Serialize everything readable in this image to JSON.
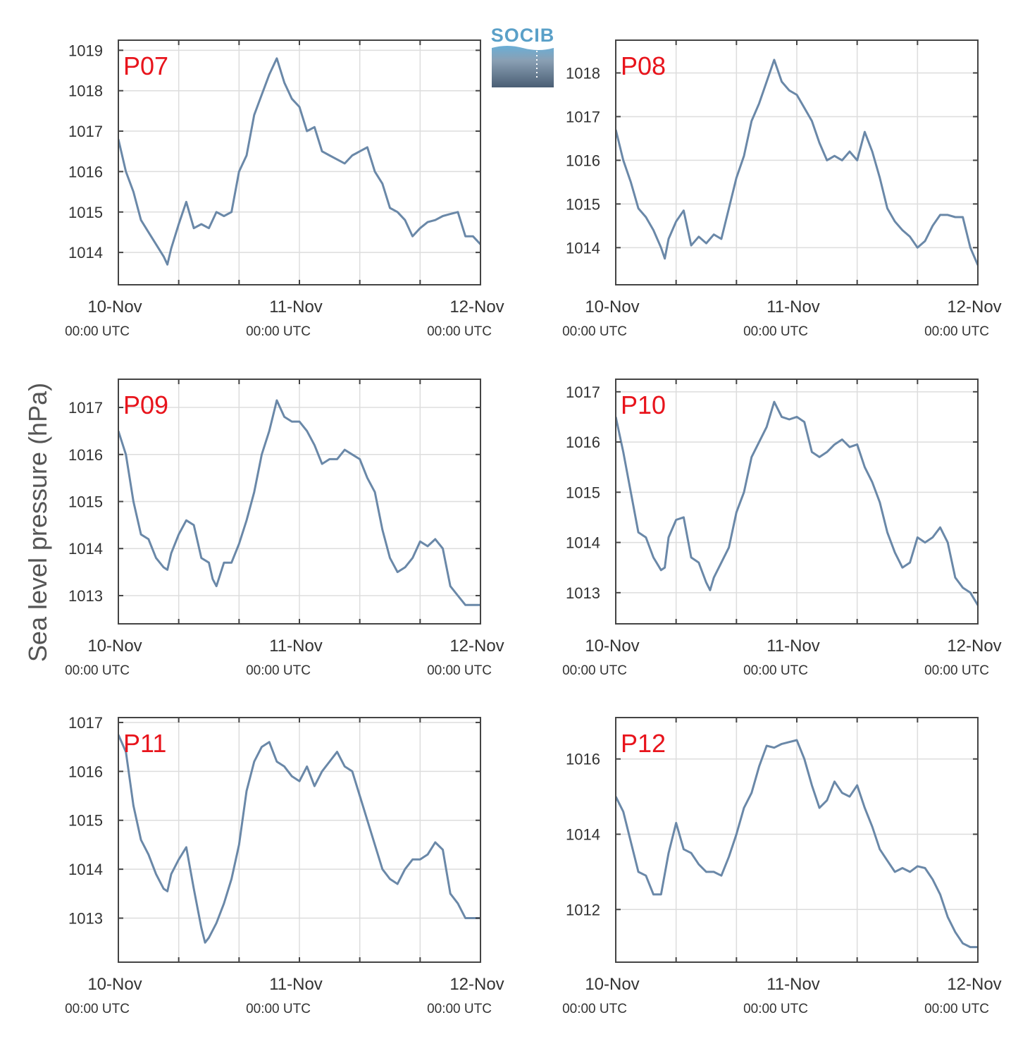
{
  "figure": {
    "ylabel": "Sea level pressure (hPa)",
    "logo_text": "SOCIB",
    "line_color": "#6a88a8",
    "label_color": "#e8141c",
    "grid_color": "#dddddd",
    "frame_color": "#444444"
  },
  "chart_data": [
    {
      "type": "line",
      "name": "P07",
      "xlabel": "",
      "ylabel": "Sea level pressure (hPa)",
      "x_ticks": [
        {
          "hour": 0,
          "date": "10-Nov",
          "time": "00:00 UTC"
        },
        {
          "hour": 24,
          "date": "11-Nov",
          "time": "00:00 UTC"
        },
        {
          "hour": 48,
          "date": "12-Nov",
          "time": "00:00 UTC"
        }
      ],
      "xlim_hours": [
        0,
        48
      ],
      "ylim": [
        1013.2,
        1019.25
      ],
      "yticks": [
        1014,
        1015,
        1016,
        1017,
        1018,
        1019
      ],
      "grid": true,
      "series": [
        {
          "x_hours": [
            0,
            1,
            2,
            3,
            4,
            5,
            6,
            6.5,
            7,
            8,
            9,
            10,
            11,
            12,
            13,
            14,
            15,
            16,
            17,
            18,
            19,
            20,
            21,
            22,
            23,
            24,
            25,
            26,
            27,
            28,
            29,
            30,
            31,
            32,
            33,
            34,
            35,
            36,
            37,
            38,
            39,
            40,
            41,
            42,
            43,
            44,
            45,
            46,
            47,
            48
          ],
          "values": [
            1016.8,
            1016.0,
            1015.5,
            1014.8,
            1014.5,
            1014.2,
            1013.9,
            1013.7,
            1014.1,
            1014.7,
            1015.25,
            1014.6,
            1014.7,
            1014.6,
            1015.0,
            1014.9,
            1015.0,
            1016.0,
            1016.4,
            1017.4,
            1017.9,
            1018.4,
            1018.8,
            1018.2,
            1017.8,
            1017.6,
            1017.0,
            1017.1,
            1016.5,
            1016.4,
            1016.3,
            1016.2,
            1016.4,
            1016.5,
            1016.6,
            1016.0,
            1015.7,
            1015.1,
            1015.0,
            1014.8,
            1014.4,
            1014.6,
            1014.75,
            1014.8,
            1014.9,
            1014.95,
            1015.0,
            1014.4,
            1014.4,
            1014.2
          ]
        }
      ]
    },
    {
      "type": "line",
      "name": "P08",
      "xlabel": "",
      "ylabel": "Sea level pressure (hPa)",
      "x_ticks": [
        {
          "hour": 0,
          "date": "10-Nov",
          "time": "00:00 UTC"
        },
        {
          "hour": 24,
          "date": "11-Nov",
          "time": "00:00 UTC"
        },
        {
          "hour": 48,
          "date": "12-Nov",
          "time": "00:00 UTC"
        }
      ],
      "xlim_hours": [
        0,
        48
      ],
      "ylim": [
        1013.15,
        1018.75
      ],
      "yticks": [
        1014,
        1015,
        1016,
        1017,
        1018
      ],
      "grid": true,
      "series": [
        {
          "x_hours": [
            0,
            1,
            2,
            3,
            4,
            5,
            6,
            6.5,
            7,
            8,
            9,
            10,
            11,
            12,
            13,
            14,
            15,
            16,
            17,
            18,
            19,
            20,
            21,
            22,
            23,
            24,
            25,
            26,
            27,
            28,
            29,
            30,
            31,
            32,
            33,
            34,
            35,
            36,
            37,
            38,
            39,
            40,
            41,
            42,
            43,
            44,
            45,
            46,
            47,
            48
          ],
          "values": [
            1016.7,
            1016.0,
            1015.5,
            1014.9,
            1014.7,
            1014.4,
            1014.0,
            1013.75,
            1014.2,
            1014.6,
            1014.85,
            1014.05,
            1014.25,
            1014.1,
            1014.3,
            1014.2,
            1014.9,
            1015.6,
            1016.1,
            1016.9,
            1017.3,
            1017.8,
            1018.3,
            1017.8,
            1017.6,
            1017.5,
            1017.2,
            1016.9,
            1016.4,
            1016.0,
            1016.1,
            1016.0,
            1016.2,
            1016.0,
            1016.65,
            1016.2,
            1015.6,
            1014.9,
            1014.6,
            1014.4,
            1014.25,
            1014.0,
            1014.15,
            1014.5,
            1014.75,
            1014.75,
            1014.7,
            1014.7,
            1014.0,
            1013.6
          ]
        }
      ]
    },
    {
      "type": "line",
      "name": "P09",
      "xlabel": "",
      "ylabel": "Sea level pressure (hPa)",
      "x_ticks": [
        {
          "hour": 0,
          "date": "10-Nov",
          "time": "00:00 UTC"
        },
        {
          "hour": 24,
          "date": "11-Nov",
          "time": "00:00 UTC"
        },
        {
          "hour": 48,
          "date": "12-Nov",
          "time": "00:00 UTC"
        }
      ],
      "xlim_hours": [
        0,
        48
      ],
      "ylim": [
        1012.4,
        1017.6
      ],
      "yticks": [
        1013,
        1014,
        1015,
        1016,
        1017
      ],
      "grid": true,
      "series": [
        {
          "x_hours": [
            0,
            1,
            2,
            3,
            4,
            5,
            6,
            6.5,
            7,
            8,
            9,
            10,
            11,
            12,
            12.5,
            13,
            14,
            15,
            16,
            17,
            18,
            19,
            20,
            21,
            22,
            23,
            24,
            25,
            26,
            27,
            28,
            29,
            30,
            31,
            32,
            33,
            34,
            35,
            36,
            37,
            38,
            39,
            40,
            41,
            42,
            43,
            44,
            45,
            46,
            47,
            48
          ],
          "values": [
            1016.5,
            1016.0,
            1015.0,
            1014.3,
            1014.2,
            1013.8,
            1013.6,
            1013.55,
            1013.9,
            1014.3,
            1014.6,
            1014.5,
            1013.8,
            1013.7,
            1013.35,
            1013.2,
            1013.7,
            1013.7,
            1014.1,
            1014.6,
            1015.2,
            1016.0,
            1016.5,
            1017.15,
            1016.8,
            1016.7,
            1016.7,
            1016.5,
            1016.2,
            1015.8,
            1015.9,
            1015.9,
            1016.1,
            1016.0,
            1015.9,
            1015.5,
            1015.2,
            1014.4,
            1013.8,
            1013.5,
            1013.6,
            1013.8,
            1014.15,
            1014.05,
            1014.2,
            1014.0,
            1013.2,
            1013.0,
            1012.8,
            1012.8,
            1012.8
          ]
        }
      ]
    },
    {
      "type": "line",
      "name": "P10",
      "xlabel": "",
      "ylabel": "Sea level pressure (hPa)",
      "x_ticks": [
        {
          "hour": 0,
          "date": "10-Nov",
          "time": "00:00 UTC"
        },
        {
          "hour": 24,
          "date": "11-Nov",
          "time": "00:00 UTC"
        },
        {
          "hour": 48,
          "date": "12-Nov",
          "time": "00:00 UTC"
        }
      ],
      "xlim_hours": [
        0,
        48
      ],
      "ylim": [
        1012.38,
        1017.25
      ],
      "yticks": [
        1013,
        1014,
        1015,
        1016,
        1017
      ],
      "grid": true,
      "series": [
        {
          "x_hours": [
            0,
            1,
            2,
            3,
            4,
            5,
            6,
            6.5,
            7,
            8,
            9,
            10,
            11,
            12,
            12.5,
            13,
            14,
            15,
            16,
            17,
            18,
            19,
            20,
            21,
            22,
            23,
            24,
            25,
            26,
            27,
            28,
            29,
            30,
            31,
            32,
            33,
            34,
            35,
            36,
            37,
            38,
            39,
            40,
            41,
            42,
            43,
            44,
            45,
            46,
            47,
            48
          ],
          "values": [
            1016.5,
            1015.8,
            1015.0,
            1014.2,
            1014.1,
            1013.7,
            1013.45,
            1013.5,
            1014.1,
            1014.45,
            1014.5,
            1013.7,
            1013.6,
            1013.2,
            1013.05,
            1013.3,
            1013.6,
            1013.9,
            1014.6,
            1015.0,
            1015.7,
            1016.0,
            1016.3,
            1016.8,
            1016.5,
            1016.45,
            1016.5,
            1016.4,
            1015.8,
            1015.7,
            1015.8,
            1015.95,
            1016.05,
            1015.9,
            1015.95,
            1015.5,
            1015.2,
            1014.8,
            1014.2,
            1013.8,
            1013.5,
            1013.6,
            1014.1,
            1014.0,
            1014.1,
            1014.3,
            1014.0,
            1013.3,
            1013.1,
            1013.0,
            1012.75
          ]
        }
      ]
    },
    {
      "type": "line",
      "name": "P11",
      "xlabel": "",
      "ylabel": "Sea level pressure (hPa)",
      "x_ticks": [
        {
          "hour": 0,
          "date": "10-Nov",
          "time": "00:00 UTC"
        },
        {
          "hour": 24,
          "date": "11-Nov",
          "time": "00:00 UTC"
        },
        {
          "hour": 48,
          "date": "12-Nov",
          "time": "00:00 UTC"
        }
      ],
      "xlim_hours": [
        0,
        48
      ],
      "ylim": [
        1012.1,
        1017.1
      ],
      "yticks": [
        1013,
        1014,
        1015,
        1016,
        1017
      ],
      "grid": true,
      "series": [
        {
          "x_hours": [
            0,
            1,
            2,
            3,
            4,
            5,
            6,
            6.5,
            7,
            8,
            9,
            10,
            11,
            11.5,
            12,
            13,
            14,
            15,
            16,
            17,
            18,
            19,
            20,
            21,
            22,
            23,
            24,
            25,
            26,
            27,
            28,
            29,
            30,
            31,
            32,
            33,
            34,
            35,
            36,
            37,
            38,
            39,
            40,
            41,
            42,
            43,
            44,
            45,
            46,
            47,
            48
          ],
          "values": [
            1016.75,
            1016.4,
            1015.3,
            1014.6,
            1014.3,
            1013.9,
            1013.6,
            1013.55,
            1013.9,
            1014.2,
            1014.45,
            1013.6,
            1012.8,
            1012.5,
            1012.6,
            1012.9,
            1013.3,
            1013.8,
            1014.5,
            1015.6,
            1016.2,
            1016.5,
            1016.6,
            1016.2,
            1016.1,
            1015.9,
            1015.8,
            1016.1,
            1015.7,
            1016.0,
            1016.2,
            1016.4,
            1016.1,
            1016.0,
            1015.5,
            1015.0,
            1014.5,
            1014.0,
            1013.8,
            1013.7,
            1014.0,
            1014.2,
            1014.2,
            1014.3,
            1014.55,
            1014.4,
            1013.5,
            1013.3,
            1013.0,
            1013.0,
            1013.0
          ]
        }
      ]
    },
    {
      "type": "line",
      "name": "P12",
      "xlabel": "",
      "ylabel": "Sea level pressure (hPa)",
      "x_ticks": [
        {
          "hour": 0,
          "date": "10-Nov",
          "time": "00:00 UTC"
        },
        {
          "hour": 24,
          "date": "11-Nov",
          "time": "00:00 UTC"
        },
        {
          "hour": 48,
          "date": "12-Nov",
          "time": "00:00 UTC"
        }
      ],
      "xlim_hours": [
        0,
        48
      ],
      "ylim": [
        1010.6,
        1017.1
      ],
      "yticks": [
        1012,
        1014,
        1016
      ],
      "grid": true,
      "series": [
        {
          "x_hours": [
            0,
            1,
            2,
            3,
            4,
            5,
            6,
            7,
            8,
            9,
            10,
            11,
            12,
            13,
            14,
            15,
            16,
            17,
            18,
            19,
            20,
            21,
            22,
            23,
            24,
            25,
            26,
            27,
            28,
            29,
            30,
            31,
            32,
            33,
            34,
            35,
            36,
            37,
            38,
            39,
            40,
            41,
            42,
            43,
            44,
            45,
            46,
            47,
            48
          ],
          "values": [
            1015.0,
            1014.6,
            1013.8,
            1013.0,
            1012.9,
            1012.4,
            1012.4,
            1013.5,
            1014.3,
            1013.6,
            1013.5,
            1013.2,
            1013.0,
            1013.0,
            1012.9,
            1013.4,
            1014.0,
            1014.7,
            1015.1,
            1015.8,
            1016.35,
            1016.3,
            1016.4,
            1016.45,
            1016.5,
            1016.0,
            1015.3,
            1014.7,
            1014.9,
            1015.4,
            1015.1,
            1015.0,
            1015.3,
            1014.7,
            1014.2,
            1013.6,
            1013.3,
            1013.0,
            1013.1,
            1013.0,
            1013.15,
            1013.1,
            1012.8,
            1012.4,
            1011.8,
            1011.4,
            1011.1,
            1011.0,
            1011.0
          ]
        }
      ]
    }
  ]
}
